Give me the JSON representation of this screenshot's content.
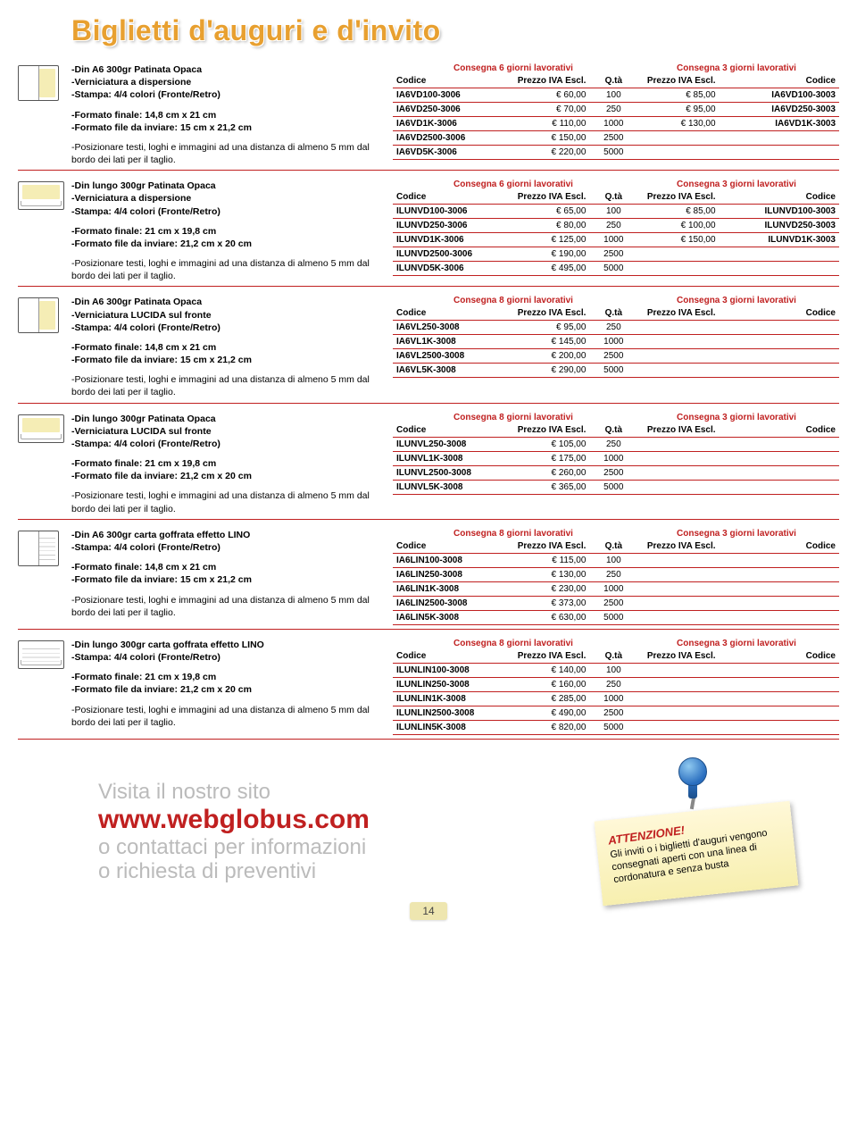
{
  "title": "Biglietti d'auguri e d'invito",
  "labels": {
    "consegna6": "Consegna 6 giorni lavorativi",
    "consegna8": "Consegna 8 giorni lavorativi",
    "consegna3": "Consegna 3 giorni lavorativi",
    "codice": "Codice",
    "prezzo": "Prezzo IVA Escl.",
    "qta": "Q.tà"
  },
  "common": {
    "stampa": "-Stampa: 4/4 colori (Fronte/Retro)",
    "pos": "-Posizionare testi, loghi e immagini ad una distanza di almeno 5 mm dal bordo dei lati per il taglio."
  },
  "sections": [
    {
      "lines": [
        "-Din A6 300gr Patinata Opaca",
        "-Verniciatura a dispersione",
        "-Stampa: 4/4 colori (Fronte/Retro)"
      ],
      "lines2": [
        "-Formato finale: 14,8 cm x 21 cm",
        "-Formato file da inviare: 15 cm x 21,2 cm"
      ],
      "headLeft": "consegna6",
      "rows": [
        {
          "c1": "IA6VD100-3006",
          "p1": "€ 60,00",
          "q": "100",
          "p2": "€ 85,00",
          "c2": "IA6VD100-3003"
        },
        {
          "c1": "IA6VD250-3006",
          "p1": "€ 70,00",
          "q": "250",
          "p2": "€ 95,00",
          "c2": "IA6VD250-3003"
        },
        {
          "c1": "IA6VD1K-3006",
          "p1": "€ 110,00",
          "q": "1000",
          "p2": "€ 130,00",
          "c2": "IA6VD1K-3003"
        },
        {
          "c1": "IA6VD2500-3006",
          "p1": "€ 150,00",
          "q": "2500",
          "p2": "",
          "c2": ""
        },
        {
          "c1": "IA6VD5K-3006",
          "p1": "€ 220,00",
          "q": "5000",
          "p2": "",
          "c2": ""
        }
      ]
    },
    {
      "lines": [
        "-Din lungo 300gr Patinata Opaca",
        "-Verniciatura a dispersione",
        "-Stampa: 4/4 colori (Fronte/Retro)"
      ],
      "lines2": [
        "-Formato finale: 21 cm x 19,8 cm",
        "-Formato file da inviare: 21,2 cm x 20 cm"
      ],
      "headLeft": "consegna6",
      "rows": [
        {
          "c1": "ILUNVD100-3006",
          "p1": "€ 65,00",
          "q": "100",
          "p2": "€ 85,00",
          "c2": "ILUNVD100-3003"
        },
        {
          "c1": "ILUNVD250-3006",
          "p1": "€ 80,00",
          "q": "250",
          "p2": "€ 100,00",
          "c2": "ILUNVD250-3003"
        },
        {
          "c1": "ILUNVD1K-3006",
          "p1": "€ 125,00",
          "q": "1000",
          "p2": "€ 150,00",
          "c2": "ILUNVD1K-3003"
        },
        {
          "c1": "ILUNVD2500-3006",
          "p1": "€ 190,00",
          "q": "2500",
          "p2": "",
          "c2": ""
        },
        {
          "c1": "ILUNVD5K-3006",
          "p1": "€ 495,00",
          "q": "5000",
          "p2": "",
          "c2": ""
        }
      ]
    },
    {
      "lines": [
        "-Din A6 300gr Patinata Opaca",
        "-Verniciatura LUCIDA sul fronte",
        "-Stampa: 4/4 colori (Fronte/Retro)"
      ],
      "lines2": [
        "-Formato finale: 14,8 cm x 21 cm",
        "-Formato file da inviare: 15 cm x 21,2 cm"
      ],
      "headLeft": "consegna8",
      "rows": [
        {
          "c1": "IA6VL250-3008",
          "p1": "€ 95,00",
          "q": "250",
          "p2": "",
          "c2": ""
        },
        {
          "c1": "IA6VL1K-3008",
          "p1": "€ 145,00",
          "q": "1000",
          "p2": "",
          "c2": ""
        },
        {
          "c1": "IA6VL2500-3008",
          "p1": "€ 200,00",
          "q": "2500",
          "p2": "",
          "c2": ""
        },
        {
          "c1": "IA6VL5K-3008",
          "p1": "€ 290,00",
          "q": "5000",
          "p2": "",
          "c2": ""
        }
      ]
    },
    {
      "lines": [
        "-Din lungo 300gr Patinata Opaca",
        "-Verniciatura LUCIDA sul fronte",
        "-Stampa: 4/4 colori (Fronte/Retro)"
      ],
      "lines2": [
        "-Formato finale: 21 cm x 19,8 cm",
        "-Formato file da inviare: 21,2 cm x 20 cm"
      ],
      "headLeft": "consegna8",
      "rows": [
        {
          "c1": "ILUNVL250-3008",
          "p1": "€ 105,00",
          "q": "250",
          "p2": "",
          "c2": ""
        },
        {
          "c1": "ILUNVL1K-3008",
          "p1": "€ 175,00",
          "q": "1000",
          "p2": "",
          "c2": ""
        },
        {
          "c1": "ILUNVL2500-3008",
          "p1": "€ 260,00",
          "q": "2500",
          "p2": "",
          "c2": ""
        },
        {
          "c1": "ILUNVL5K-3008",
          "p1": "€ 365,00",
          "q": "5000",
          "p2": "",
          "c2": ""
        }
      ]
    },
    {
      "lines": [
        "-Din A6 300gr carta goffrata effetto LINO",
        "-Stampa: 4/4 colori (Fronte/Retro)"
      ],
      "lines2": [
        "-Formato finale: 14,8 cm x 21 cm",
        "-Formato file da inviare: 15 cm x 21,2 cm"
      ],
      "headLeft": "consegna8",
      "rows": [
        {
          "c1": "IA6LIN100-3008",
          "p1": "€ 115,00",
          "q": "100",
          "p2": "",
          "c2": ""
        },
        {
          "c1": "IA6LIN250-3008",
          "p1": "€ 130,00",
          "q": "250",
          "p2": "",
          "c2": ""
        },
        {
          "c1": "IA6LIN1K-3008",
          "p1": "€ 230,00",
          "q": "1000",
          "p2": "",
          "c2": ""
        },
        {
          "c1": "IA6LIN2500-3008",
          "p1": "€ 373,00",
          "q": "2500",
          "p2": "",
          "c2": ""
        },
        {
          "c1": "IA6LIN5K-3008",
          "p1": "€ 630,00",
          "q": "5000",
          "p2": "",
          "c2": ""
        }
      ]
    },
    {
      "lines": [
        "-Din lungo 300gr carta goffrata effetto LINO",
        "-Stampa: 4/4 colori (Fronte/Retro)"
      ],
      "lines2": [
        "-Formato finale: 21 cm x 19,8 cm",
        "-Formato file da inviare: 21,2 cm x 20 cm"
      ],
      "headLeft": "consegna8",
      "rows": [
        {
          "c1": "ILUNLIN100-3008",
          "p1": "€ 140,00",
          "q": "100",
          "p2": "",
          "c2": ""
        },
        {
          "c1": "ILUNLIN250-3008",
          "p1": "€ 160,00",
          "q": "250",
          "p2": "",
          "c2": ""
        },
        {
          "c1": "ILUNLIN1K-3008",
          "p1": "€ 285,00",
          "q": "1000",
          "p2": "",
          "c2": ""
        },
        {
          "c1": "ILUNLIN2500-3008",
          "p1": "€ 490,00",
          "q": "2500",
          "p2": "",
          "c2": ""
        },
        {
          "c1": "ILUNLIN5K-3008",
          "p1": "€ 820,00",
          "q": "5000",
          "p2": "",
          "c2": ""
        }
      ]
    }
  ],
  "iconKinds": [
    "portrait",
    "landscape",
    "portrait",
    "landscape",
    "portrait lino",
    "landscape lino"
  ],
  "footer": {
    "visit": "Visita il nostro sito",
    "site": "www.webglobus.com",
    "rest1": "o contattaci per informazioni",
    "rest2": "o richiesta di preventivi"
  },
  "note": {
    "att": "ATTENZIONE!",
    "body": "Gli inviti o i biglietti d'auguri vengono consegnati aperti con una linea di cordonatura e senza busta"
  },
  "pageNum": "14"
}
